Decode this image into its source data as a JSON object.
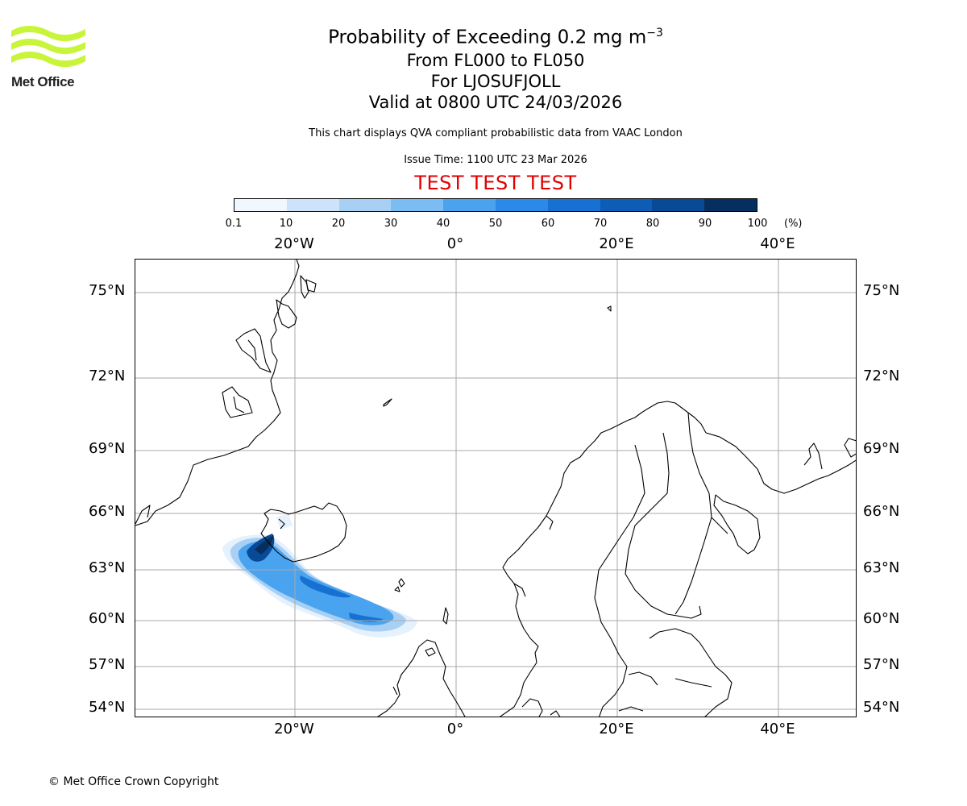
{
  "logo": {
    "text": "Met Office",
    "color": "#c8f53a"
  },
  "title": {
    "main": "Probability of Exceeding 0.2 mg m",
    "superscript": "−3",
    "flight_levels": "From FL000 to FL050",
    "volcano": "For LJOSUFJOLL",
    "valid": "Valid at 0800 UTC 24/03/2026"
  },
  "subtitle": "This chart displays QVA compliant probabilistic data from VAAC London",
  "issue_time": "Issue Time: 1100 UTC 23 Mar 2026",
  "test_banner": "TEST TEST TEST",
  "colorbar": {
    "ticks": [
      "0.1",
      "10",
      "20",
      "30",
      "40",
      "50",
      "60",
      "70",
      "80",
      "90",
      "100"
    ],
    "unit": "(%)",
    "colors": [
      "#f0f7ff",
      "#cce3f9",
      "#a8d0f5",
      "#7bbcf2",
      "#4aa3ef",
      "#2b8ae8",
      "#1671d2",
      "#0d5cb5",
      "#084a95",
      "#062f60"
    ]
  },
  "axes": {
    "lon_labels": [
      "20°W",
      "0°",
      "20°E",
      "40°E"
    ],
    "lat_labels": [
      "75°N",
      "72°N",
      "69°N",
      "66°N",
      "63°N",
      "60°N",
      "57°N",
      "54°N"
    ]
  },
  "copyright": "© Met Office Crown Copyright"
}
